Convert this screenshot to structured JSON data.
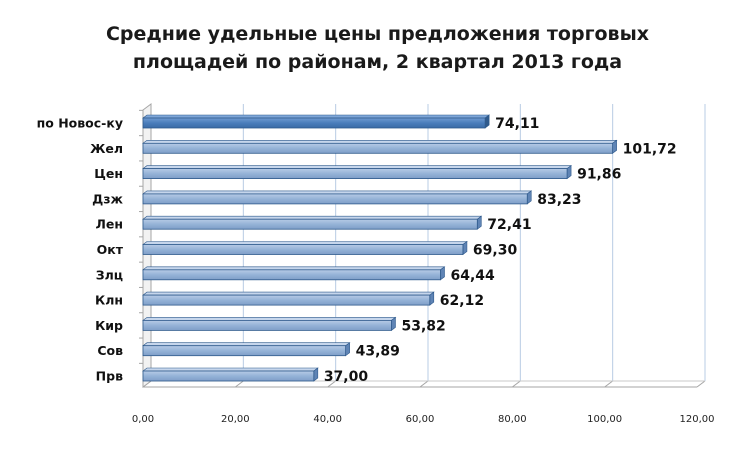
{
  "chart_data": {
    "type": "bar",
    "orientation": "horizontal",
    "title_lines": [
      "Средние удельные цены предложения торговых",
      "площадей по районам, 2 квартал 2013 года"
    ],
    "categories": [
      "по Новос-ку",
      "Жел",
      "Цен",
      "Дзж",
      "Лен",
      "Окт",
      "Злц",
      "Клн",
      "Кир",
      "Сов",
      "Прв"
    ],
    "values": [
      74.11,
      101.72,
      91.86,
      83.23,
      72.41,
      69.3,
      64.44,
      62.12,
      53.82,
      43.89,
      37.0
    ],
    "value_labels": [
      "74,11",
      "101,72",
      "91,86",
      "83,23",
      "72,41",
      "69,30",
      "64,44",
      "62,12",
      "53,82",
      "43,89",
      "37,00"
    ],
    "x_ticks": [
      0,
      20,
      40,
      60,
      80,
      100,
      120
    ],
    "x_tick_labels": [
      "0,00",
      "20,00",
      "40,00",
      "60,00",
      "80,00",
      "100,00",
      "120,00"
    ],
    "xlim": [
      0,
      120
    ],
    "grid": true,
    "legend": "none",
    "colors": {
      "highlight_bar": "#4f81bd",
      "bar": "#95b3d7",
      "bar_edge": "#2f5a8c",
      "grid": "#b8cce4"
    }
  }
}
